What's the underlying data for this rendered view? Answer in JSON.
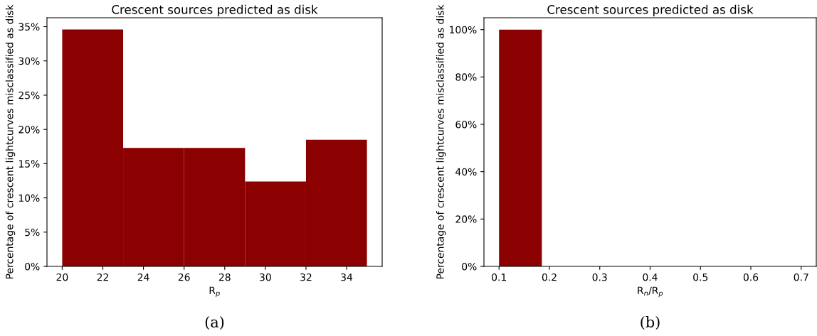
{
  "chart_data": [
    {
      "type": "histogram",
      "title": "Crescent sources predicted as disk",
      "xlabel": "R$_{p}$",
      "ylabel": "Percentage of crescent lightcurves misclassified as disk",
      "annotations": [
        "(a)"
      ],
      "bins": [
        20,
        23,
        26,
        29,
        32,
        35
      ],
      "values": [
        34.6,
        17.3,
        17.3,
        12.4,
        18.5
      ],
      "color": "#8b0000",
      "xlim": [
        19.25,
        35.75
      ],
      "xticks": [
        20,
        22,
        24,
        26,
        28,
        30,
        32,
        34
      ],
      "ylim": [
        0,
        36.3
      ],
      "yticks": [
        {
          "value": 0,
          "label": "0%"
        },
        {
          "value": 5,
          "label": "5%"
        },
        {
          "value": 10,
          "label": "10%"
        },
        {
          "value": 15,
          "label": "15%"
        },
        {
          "value": 20,
          "label": "20%"
        },
        {
          "value": 25,
          "label": "25%"
        },
        {
          "value": 30,
          "label": "30%"
        },
        {
          "value": 35,
          "label": "35%"
        }
      ],
      "grid": false,
      "legend": false
    },
    {
      "type": "histogram",
      "title": "Crescent sources predicted as disk",
      "xlabel": "R$_{n}$/R$_{p}$",
      "ylabel": "Percentage of crescent lightcurves misclassified as disk",
      "annotations": [
        "(b)"
      ],
      "bins": [
        0.1,
        0.185
      ],
      "values": [
        100
      ],
      "color": "#8b0000",
      "xlim": [
        0.07,
        0.73
      ],
      "xticks": [
        0.1,
        0.2,
        0.3,
        0.4,
        0.5,
        0.6,
        0.7
      ],
      "ylim": [
        0,
        105
      ],
      "yticks": [
        {
          "value": 0,
          "label": "0%"
        },
        {
          "value": 20,
          "label": "20%"
        },
        {
          "value": 40,
          "label": "40%"
        },
        {
          "value": 60,
          "label": "60%"
        },
        {
          "value": 80,
          "label": "80%"
        },
        {
          "value": 100,
          "label": "100%"
        }
      ],
      "grid": false,
      "legend": false
    }
  ]
}
